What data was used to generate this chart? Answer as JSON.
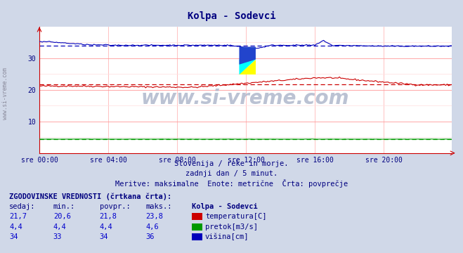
{
  "title": "Kolpa - Sodevci",
  "title_color": "#000080",
  "bg_color": "#d0d8e8",
  "plot_bg_color": "#ffffff",
  "watermark": "www.si-vreme.com",
  "left_watermark": "www.si-vreme.com",
  "subtitle1": "Slovenija / reke in morje.",
  "subtitle2": "zadnji dan / 5 minut.",
  "subtitle3": "Meritve: maksimalne  Enote: metrične  Črta: povprečje",
  "footer_header": "ZGODOVINSKE VREDNOSTI (črtkana črta):",
  "footer_col_labels": [
    "sedaj:",
    "min.:",
    "povpr.:",
    "maks.:",
    "Kolpa - Sodevci"
  ],
  "footer_rows": [
    [
      "21,7",
      "20,6",
      "21,8",
      "23,8",
      "temperatura[C]",
      "#cc0000"
    ],
    [
      "4,4",
      "4,4",
      "4,4",
      "4,6",
      "pretok[m3/s]",
      "#009900"
    ],
    [
      "34",
      "33",
      "34",
      "36",
      "višina[cm]",
      "#0000bb"
    ]
  ],
  "xlabel_ticks": [
    "sre 00:00",
    "sre 04:00",
    "sre 08:00",
    "sre 12:00",
    "sre 16:00",
    "sre 20:00"
  ],
  "ylim": [
    0,
    40
  ],
  "xlim_max": 287,
  "temp_color": "#cc0000",
  "pretok_color": "#009900",
  "visina_color": "#0000bb",
  "n_points": 288,
  "temp_avg": 21.8,
  "pretok_avg": 4.4,
  "visina_avg": 34.0
}
